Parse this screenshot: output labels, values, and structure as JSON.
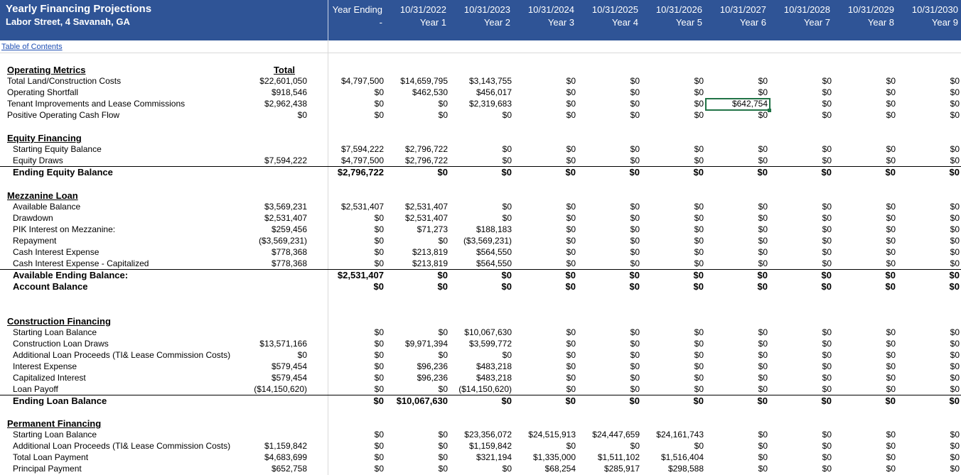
{
  "header": {
    "title": "Yearly Financing Projections",
    "subtitle": "Labor Street, 4 Savanah, GA",
    "year_headers": [
      {
        "top": "Year Ending",
        "bottom": "-"
      },
      {
        "top": "10/31/2022",
        "bottom": "Year 1"
      },
      {
        "top": "10/31/2023",
        "bottom": "Year 2"
      },
      {
        "top": "10/31/2024",
        "bottom": "Year 3"
      },
      {
        "top": "10/31/2025",
        "bottom": "Year 4"
      },
      {
        "top": "10/31/2026",
        "bottom": "Year 5"
      },
      {
        "top": "10/31/2027",
        "bottom": "Year 6"
      },
      {
        "top": "10/31/2028",
        "bottom": "Year 7"
      },
      {
        "top": "10/31/2029",
        "bottom": "Year 8"
      },
      {
        "top": "10/31/2030",
        "bottom": "Year 9"
      }
    ]
  },
  "toc_link": "Table of Contents",
  "total_header": "Total",
  "rows": [
    {
      "type": "section",
      "label": "Operating Metrics"
    },
    {
      "type": "row",
      "label": "Total Land/Construction Costs",
      "total": "$22,601,050",
      "values": [
        "$4,797,500",
        "$14,659,795",
        "$3,143,755",
        "$0",
        "$0",
        "$0",
        "$0",
        "$0",
        "$0",
        "$0"
      ]
    },
    {
      "type": "row",
      "label": "Operating Shortfall",
      "total": "$918,546",
      "values": [
        "$0",
        "$462,530",
        "$456,017",
        "$0",
        "$0",
        "$0",
        "$0",
        "$0",
        "$0",
        "$0"
      ]
    },
    {
      "type": "row",
      "label": "Tenant Improvements and Lease Commissions",
      "total": "$2,962,438",
      "values": [
        "$0",
        "$0",
        "$2,319,683",
        "$0",
        "$0",
        "$0",
        "$642,754",
        "$0",
        "$0",
        "$0"
      ]
    },
    {
      "type": "row",
      "label": "Positive Operating Cash Flow",
      "total": "$0",
      "values": [
        "$0",
        "$0",
        "$0",
        "$0",
        "$0",
        "$0",
        "$0",
        "$0",
        "$0",
        "$0"
      ]
    },
    {
      "type": "section",
      "label": "Equity Financing"
    },
    {
      "type": "row",
      "indent": true,
      "label": "Starting Equity Balance",
      "total": "",
      "values": [
        "$7,594,222",
        "$2,796,722",
        "$0",
        "$0",
        "$0",
        "$0",
        "$0",
        "$0",
        "$0",
        "$0"
      ]
    },
    {
      "type": "row",
      "indent": true,
      "label": "Equity Draws",
      "total": "$7,594,222",
      "values": [
        "$4,797,500",
        "$2,796,722",
        "$0",
        "$0",
        "$0",
        "$0",
        "$0",
        "$0",
        "$0",
        "$0"
      ]
    },
    {
      "type": "boldrow",
      "indent": true,
      "label": "Ending Equity Balance",
      "total": "",
      "values": [
        "$2,796,722",
        "$0",
        "$0",
        "$0",
        "$0",
        "$0",
        "$0",
        "$0",
        "$0",
        "$0"
      ]
    },
    {
      "type": "section",
      "label": "Mezzanine Loan"
    },
    {
      "type": "row",
      "indent": true,
      "label": "Available Balance",
      "total": "$3,569,231",
      "values": [
        "$2,531,407",
        "$2,531,407",
        "$0",
        "$0",
        "$0",
        "$0",
        "$0",
        "$0",
        "$0",
        "$0"
      ]
    },
    {
      "type": "row",
      "indent": true,
      "label": "Drawdown",
      "total": "$2,531,407",
      "values": [
        "$0",
        "$2,531,407",
        "$0",
        "$0",
        "$0",
        "$0",
        "$0",
        "$0",
        "$0",
        "$0"
      ]
    },
    {
      "type": "row",
      "indent": true,
      "label": "PIK Interest on Mezzanine:",
      "total": "$259,456",
      "values": [
        "$0",
        "$71,273",
        "$188,183",
        "$0",
        "$0",
        "$0",
        "$0",
        "$0",
        "$0",
        "$0"
      ]
    },
    {
      "type": "row",
      "indent": true,
      "label": "Repayment",
      "total": "($3,569,231)",
      "values": [
        "$0",
        "$0",
        "($3,569,231)",
        "$0",
        "$0",
        "$0",
        "$0",
        "$0",
        "$0",
        "$0"
      ]
    },
    {
      "type": "row",
      "indent": true,
      "label": "Cash Interest Expense",
      "total": "$778,368",
      "values": [
        "$0",
        "$213,819",
        "$564,550",
        "$0",
        "$0",
        "$0",
        "$0",
        "$0",
        "$0",
        "$0"
      ]
    },
    {
      "type": "row",
      "indent": true,
      "label": "Cash Interest Expense - Capitalized",
      "total": "$778,368",
      "values": [
        "$0",
        "$213,819",
        "$564,550",
        "$0",
        "$0",
        "$0",
        "$0",
        "$0",
        "$0",
        "$0"
      ]
    },
    {
      "type": "boldrow",
      "indent": true,
      "label": "Available Ending Balance:",
      "total": "",
      "values": [
        "$2,531,407",
        "$0",
        "$0",
        "$0",
        "$0",
        "$0",
        "$0",
        "$0",
        "$0",
        "$0"
      ]
    },
    {
      "type": "boldrow",
      "indent": true,
      "nolinetop": true,
      "label": "Account Balance",
      "total": "",
      "values": [
        "$0",
        "$0",
        "$0",
        "$0",
        "$0",
        "$0",
        "$0",
        "$0",
        "$0",
        "$0"
      ]
    },
    {
      "type": "section",
      "label": "Construction Financing"
    },
    {
      "type": "row",
      "indent": true,
      "label": "Starting Loan Balance",
      "total": "",
      "values": [
        "$0",
        "$0",
        "$10,067,630",
        "$0",
        "$0",
        "$0",
        "$0",
        "$0",
        "$0",
        "$0"
      ]
    },
    {
      "type": "row",
      "indent": true,
      "label": "Construction Loan Draws",
      "total": "$13,571,166",
      "values": [
        "$0",
        "$9,971,394",
        "$3,599,772",
        "$0",
        "$0",
        "$0",
        "$0",
        "$0",
        "$0",
        "$0"
      ]
    },
    {
      "type": "row",
      "indent": true,
      "label": "Additional Loan Proceeds (TI& Lease Commission Costs)",
      "total": "$0",
      "values": [
        "$0",
        "$0",
        "$0",
        "$0",
        "$0",
        "$0",
        "$0",
        "$0",
        "$0",
        "$0"
      ]
    },
    {
      "type": "row",
      "indent": true,
      "label": "Interest Expense",
      "total": "$579,454",
      "values": [
        "$0",
        "$96,236",
        "$483,218",
        "$0",
        "$0",
        "$0",
        "$0",
        "$0",
        "$0",
        "$0"
      ]
    },
    {
      "type": "row",
      "indent": true,
      "label": "Capitalized Interest",
      "total": "$579,454",
      "values": [
        "$0",
        "$96,236",
        "$483,218",
        "$0",
        "$0",
        "$0",
        "$0",
        "$0",
        "$0",
        "$0"
      ]
    },
    {
      "type": "row",
      "indent": true,
      "label": "Loan Payoff",
      "total": "($14,150,620)",
      "values": [
        "$0",
        "$0",
        "($14,150,620)",
        "$0",
        "$0",
        "$0",
        "$0",
        "$0",
        "$0",
        "$0"
      ]
    },
    {
      "type": "boldrow",
      "indent": true,
      "label": "Ending Loan Balance",
      "total": "",
      "values": [
        "$0",
        "$10,067,630",
        "$0",
        "$0",
        "$0",
        "$0",
        "$0",
        "$0",
        "$0",
        "$0"
      ]
    },
    {
      "type": "section",
      "label": "Permanent Financing"
    },
    {
      "type": "row",
      "indent": true,
      "label": "Starting Loan Balance",
      "total": "",
      "values": [
        "$0",
        "$0",
        "$23,356,072",
        "$24,515,913",
        "$24,447,659",
        "$24,161,743",
        "$0",
        "$0",
        "$0",
        "$0"
      ]
    },
    {
      "type": "row",
      "indent": true,
      "label": "Additional Loan Proceeds (TI& Lease Commission Costs)",
      "total": "$1,159,842",
      "values": [
        "$0",
        "$0",
        "$1,159,842",
        "$0",
        "$0",
        "$0",
        "$0",
        "$0",
        "$0",
        "$0"
      ]
    },
    {
      "type": "row",
      "indent": true,
      "label": "Total Loan Payment",
      "total": "$4,683,699",
      "values": [
        "$0",
        "$0",
        "$321,194",
        "$1,335,000",
        "$1,511,102",
        "$1,516,404",
        "$0",
        "$0",
        "$0",
        "$0"
      ]
    },
    {
      "type": "row",
      "indent": true,
      "label": "Principal Payment",
      "total": "$652,758",
      "values": [
        "$0",
        "$0",
        "$0",
        "$68,254",
        "$285,917",
        "$298,588",
        "$0",
        "$0",
        "$0",
        "$0"
      ]
    }
  ]
}
